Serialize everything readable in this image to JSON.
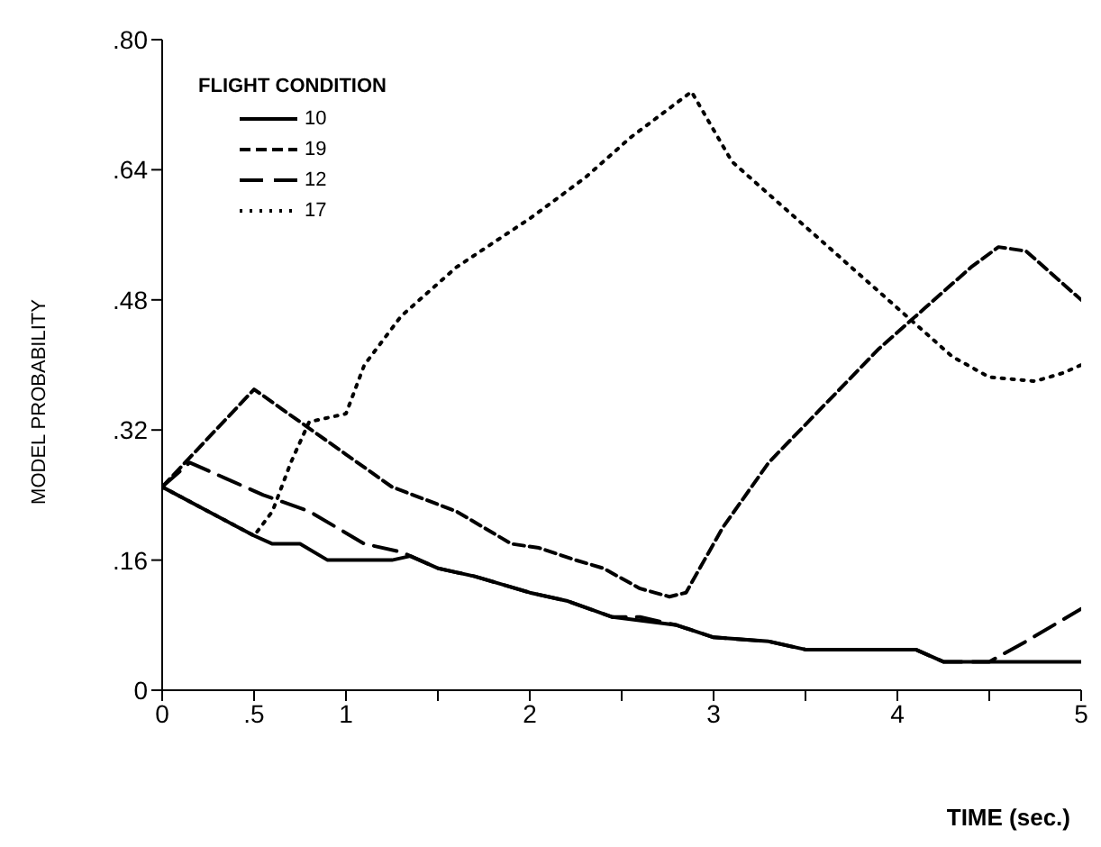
{
  "chart_data": {
    "type": "line",
    "xlabel": "TIME (sec.)",
    "ylabel": "MODEL PROBABILITY",
    "legend_title": "FLIGHT CONDITION",
    "legend": "top left",
    "marker": "none",
    "xlim": [
      0,
      5
    ],
    "xticks": [
      0,
      {
        "value": 0.5,
        "label": ".5"
      },
      1,
      {
        "value": 1.5,
        "label": null
      },
      2,
      {
        "value": 2.5,
        "label": null
      },
      3,
      {
        "value": 3.5,
        "label": null
      },
      4,
      {
        "value": 4.5,
        "label": null
      },
      5
    ],
    "ylim": [
      0,
      0.8
    ],
    "yticks": [
      0,
      {
        "value": 0.16,
        "label": ".16"
      },
      {
        "value": 0.32,
        "label": ".32"
      },
      {
        "value": 0.48,
        "label": ".48"
      },
      {
        "value": 0.64,
        "label": ".64"
      },
      {
        "value": 0.8,
        "label": ".80"
      }
    ],
    "grid": false,
    "series": [
      {
        "name": "10",
        "color": "#000000",
        "line_style": "solid",
        "x": [
          0,
          0.25,
          0.5,
          0.6,
          0.75,
          0.9,
          1.25,
          1.35,
          1.5,
          1.7,
          2,
          2.2,
          2.45,
          2.8,
          3,
          3.3,
          3.5,
          4.1,
          4.25,
          5
        ],
        "values": [
          0.25,
          0.22,
          0.19,
          0.18,
          0.18,
          0.16,
          0.16,
          0.165,
          0.15,
          0.14,
          0.12,
          0.11,
          0.09,
          0.08,
          0.065,
          0.06,
          0.05,
          0.05,
          0.035,
          0.035
        ]
      },
      {
        "name": "19",
        "color": "#000000",
        "line_style": "dashed",
        "x": [
          0,
          0.5,
          0.75,
          1,
          1.25,
          1.6,
          1.9,
          2.05,
          2.25,
          2.4,
          2.6,
          2.76,
          2.85,
          3.05,
          3.3,
          3.6,
          3.9,
          4.15,
          4.4,
          4.55,
          4.7,
          4.9,
          5
        ],
        "values": [
          0.25,
          0.37,
          0.33,
          0.29,
          0.25,
          0.22,
          0.18,
          0.175,
          0.16,
          0.15,
          0.125,
          0.115,
          0.12,
          0.2,
          0.28,
          0.35,
          0.42,
          0.47,
          0.52,
          0.545,
          0.54,
          0.5,
          0.48
        ]
      },
      {
        "name": "12",
        "color": "#000000",
        "line_style": "longdash",
        "x": [
          0,
          0.15,
          0.35,
          0.55,
          0.8,
          0.95,
          1.1,
          1.3,
          1.5,
          1.7,
          2,
          2.2,
          2.45,
          2.6,
          2.8,
          3,
          3.3,
          3.5,
          4.1,
          4.25,
          4.5,
          4.7,
          5
        ],
        "values": [
          0.25,
          0.28,
          0.26,
          0.24,
          0.22,
          0.2,
          0.18,
          0.17,
          0.15,
          0.14,
          0.12,
          0.11,
          0.09,
          0.09,
          0.08,
          0.065,
          0.06,
          0.05,
          0.05,
          0.035,
          0.035,
          0.06,
          0.1
        ]
      },
      {
        "name": "17",
        "color": "#000000",
        "line_style": "dotted",
        "x": [
          0,
          0.25,
          0.5,
          0.6,
          0.7,
          0.8,
          1,
          1.1,
          1.3,
          1.6,
          2,
          2.3,
          2.55,
          2.88,
          3.1,
          3.5,
          3.85,
          4.1,
          4.3,
          4.5,
          4.75,
          4.9,
          5
        ],
        "values": [
          0.25,
          0.22,
          0.19,
          0.22,
          0.28,
          0.33,
          0.34,
          0.4,
          0.46,
          0.52,
          0.58,
          0.63,
          0.68,
          0.736,
          0.65,
          0.57,
          0.5,
          0.45,
          0.41,
          0.385,
          0.38,
          0.39,
          0.4
        ]
      }
    ]
  }
}
